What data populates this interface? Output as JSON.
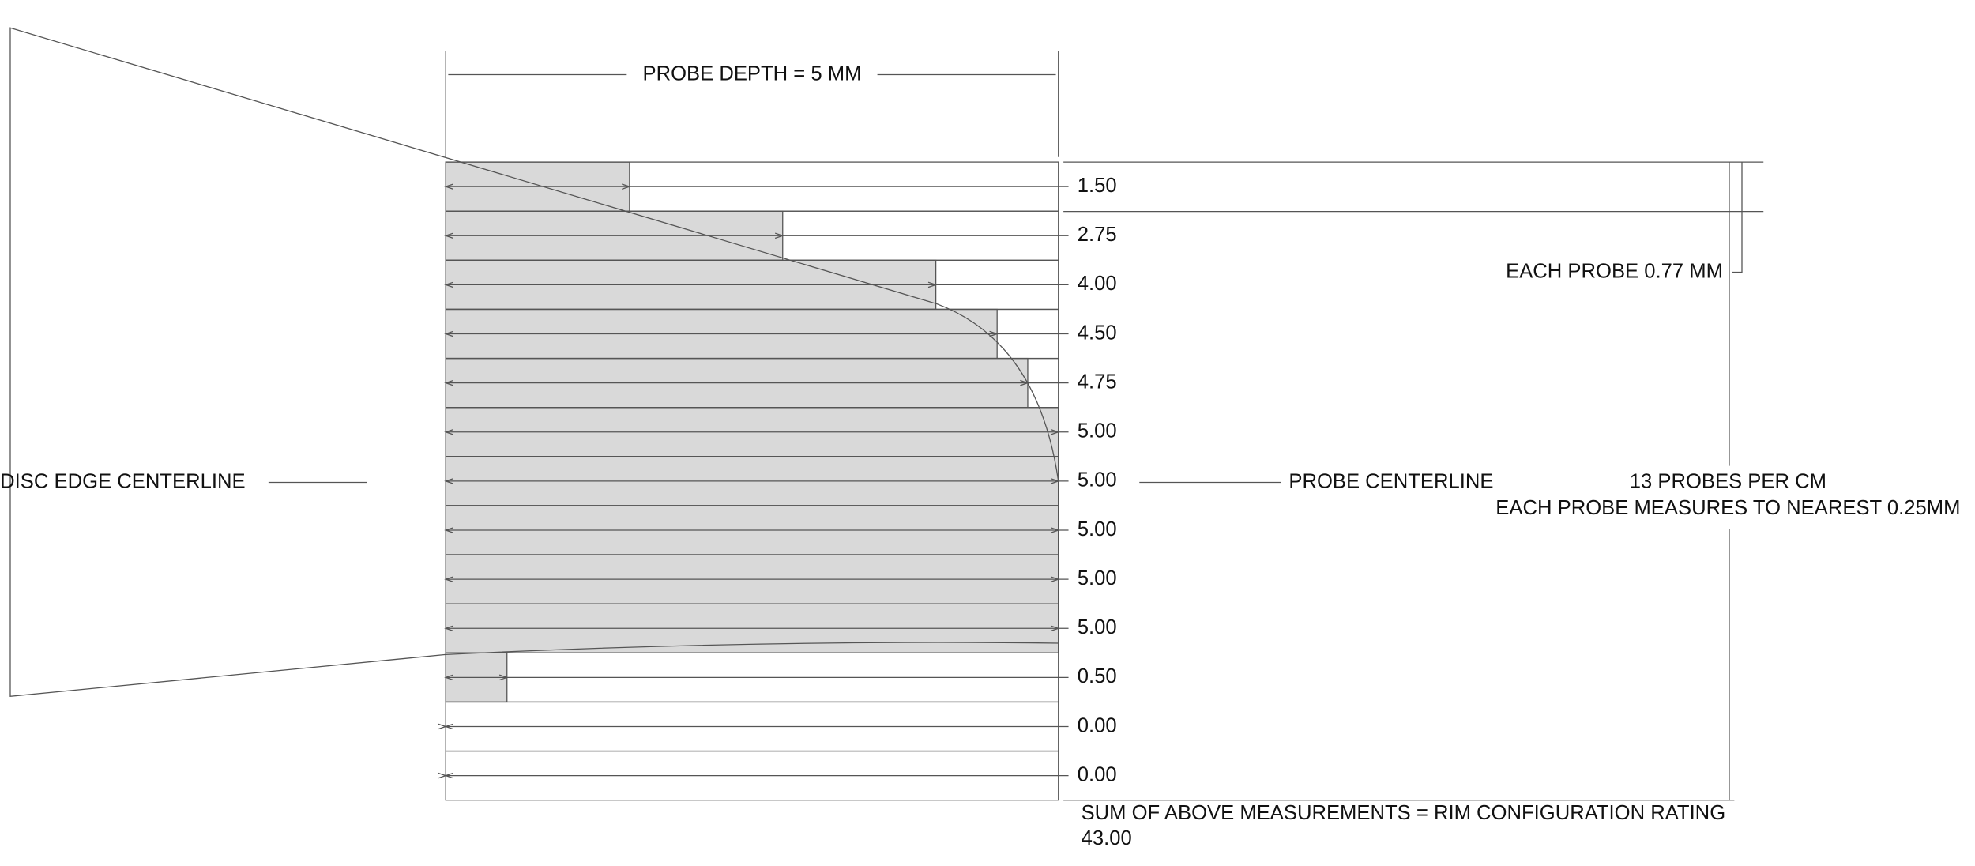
{
  "probe_depth_label": "PROBE DEPTH = 5 MM",
  "disc_edge_label": "DISC EDGE CENTERLINE",
  "probe_centerline_label": "PROBE CENTERLINE",
  "probes_per_cm": "13 PROBES PER CM",
  "precision_note": "EACH PROBE MEASURES TO NEAREST 0.25MM",
  "probe_width_label": "EACH PROBE 0.77 MM",
  "sum_label": "SUM OF ABOVE MEASUREMENTS = RIM CONFIGURATION RATING",
  "sum_value": "43.00",
  "probes": [
    "1.50",
    "2.75",
    "4.00",
    "4.50",
    "4.75",
    "5.00",
    "5.00",
    "5.00",
    "5.00",
    "5.00",
    "0.50",
    "0.00",
    "0.00"
  ]
}
